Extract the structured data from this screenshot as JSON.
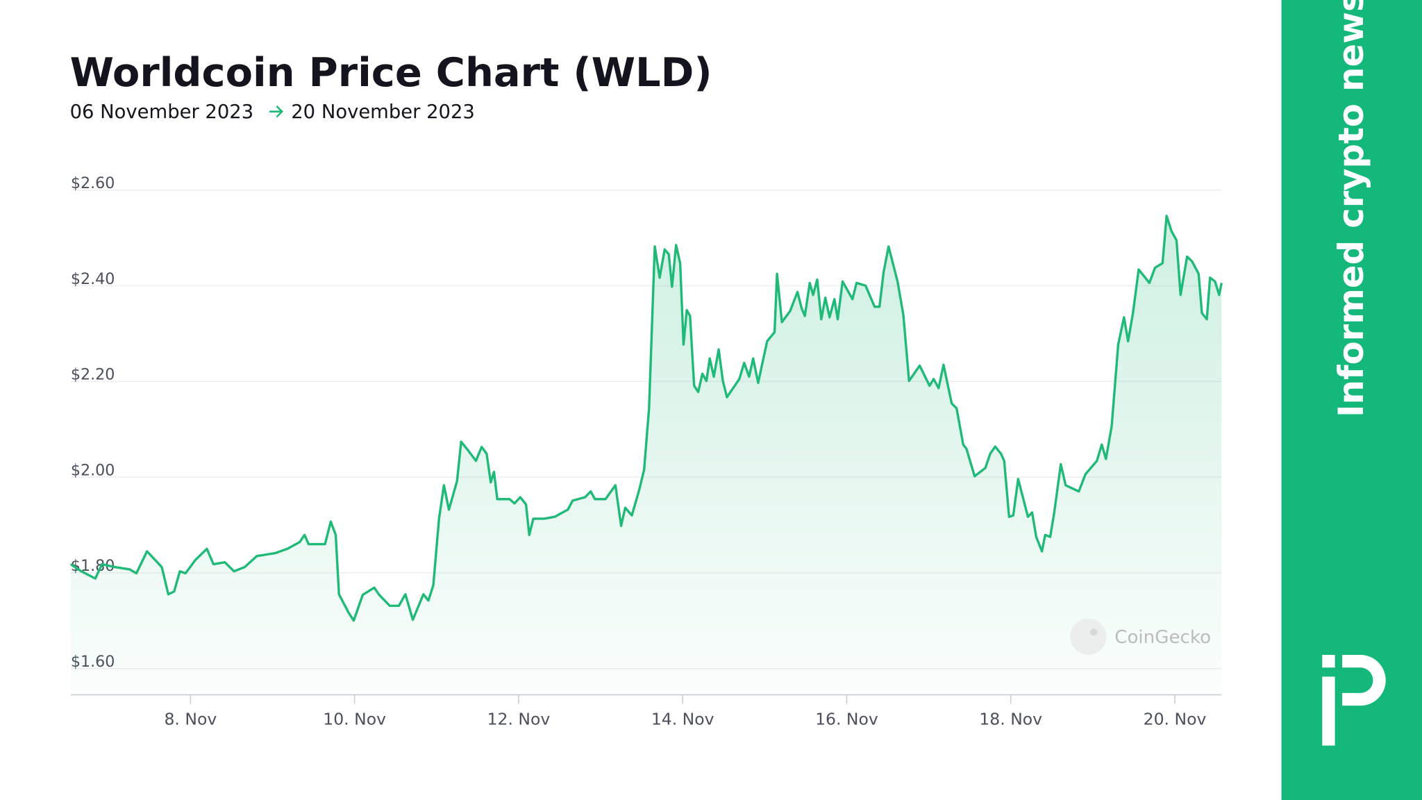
{
  "chart_data": {
    "type": "line",
    "title": "Worldcoin Price Chart (WLD)",
    "date_start": "06 November 2023",
    "date_end": "20 November 2023",
    "watermark": "CoinGecko",
    "color": "#1fb978",
    "area": true,
    "grid": true,
    "xlim": [
      6.54,
      20.57
    ],
    "ylim": [
      1.545,
      2.62
    ],
    "yticks": [
      {
        "value": 1.6,
        "label": "$1.60"
      },
      {
        "value": 1.8,
        "label": "$1.80"
      },
      {
        "value": 2.0,
        "label": "$2.00"
      },
      {
        "value": 2.2,
        "label": "$2.20"
      },
      {
        "value": 2.4,
        "label": "$2.40"
      },
      {
        "value": 2.6,
        "label": "$2.60"
      }
    ],
    "xticks": [
      {
        "value": 8,
        "label": "8. Nov"
      },
      {
        "value": 10,
        "label": "10. Nov"
      },
      {
        "value": 12,
        "label": "12. Nov"
      },
      {
        "value": 14,
        "label": "14. Nov"
      },
      {
        "value": 16,
        "label": "16. Nov"
      },
      {
        "value": 18,
        "label": "18. Nov"
      },
      {
        "value": 20,
        "label": "20. Nov"
      }
    ],
    "x": [
      6.54,
      6.67,
      6.84,
      6.92,
      7.08,
      7.26,
      7.34,
      7.47,
      7.65,
      7.73,
      7.8,
      7.87,
      7.94,
      8.06,
      8.2,
      8.28,
      8.42,
      8.53,
      8.66,
      8.81,
      9.03,
      9.18,
      9.33,
      9.39,
      9.44,
      9.64,
      9.71,
      9.77,
      9.81,
      9.93,
      9.99,
      10.1,
      10.24,
      10.3,
      10.43,
      10.54,
      10.62,
      10.71,
      10.84,
      10.9,
      10.96,
      11.03,
      11.09,
      11.15,
      11.25,
      11.3,
      11.37,
      11.48,
      11.55,
      11.61,
      11.66,
      11.7,
      11.74,
      11.89,
      11.95,
      12.02,
      12.09,
      12.13,
      12.18,
      12.31,
      12.44,
      12.6,
      12.66,
      12.81,
      12.88,
      12.93,
      13.06,
      13.18,
      13.25,
      13.3,
      13.38,
      13.47,
      13.53,
      13.59,
      13.66,
      13.72,
      13.78,
      13.83,
      13.87,
      13.92,
      13.97,
      14.01,
      14.05,
      14.09,
      14.14,
      14.19,
      14.24,
      14.29,
      14.33,
      14.38,
      14.44,
      14.49,
      14.54,
      14.69,
      14.75,
      14.81,
      14.86,
      14.92,
      15.03,
      15.12,
      15.15,
      15.21,
      15.31,
      15.4,
      15.45,
      15.49,
      15.55,
      15.59,
      15.64,
      15.69,
      15.74,
      15.79,
      15.85,
      15.89,
      15.95,
      16.07,
      16.12,
      16.23,
      16.34,
      16.4,
      16.45,
      16.51,
      16.62,
      16.69,
      16.76,
      16.89,
      17.01,
      17.06,
      17.12,
      17.18,
      17.28,
      17.34,
      17.42,
      17.46,
      17.56,
      17.69,
      17.75,
      17.81,
      17.88,
      17.92,
      17.98,
      18.03,
      18.09,
      18.21,
      18.26,
      18.31,
      18.38,
      18.42,
      18.48,
      18.53,
      18.61,
      18.67,
      18.83,
      18.91,
      19.05,
      19.11,
      19.16,
      19.23,
      19.31,
      19.38,
      19.43,
      19.49,
      19.56,
      19.69,
      19.76,
      19.85,
      19.9,
      19.96,
      20.02,
      20.07,
      20.15,
      20.21,
      20.29,
      20.33,
      20.39,
      20.43,
      20.49,
      20.54,
      20.57
    ],
    "values": [
      1.818,
      1.803,
      1.788,
      1.818,
      1.812,
      1.807,
      1.799,
      1.845,
      1.812,
      1.755,
      1.761,
      1.803,
      1.799,
      1.827,
      1.85,
      1.818,
      1.822,
      1.803,
      1.812,
      1.835,
      1.841,
      1.85,
      1.864,
      1.879,
      1.86,
      1.86,
      1.907,
      1.879,
      1.755,
      1.716,
      1.7,
      1.754,
      1.769,
      1.754,
      1.731,
      1.731,
      1.755,
      1.702,
      1.755,
      1.742,
      1.774,
      1.913,
      1.983,
      1.932,
      1.992,
      2.074,
      2.059,
      2.034,
      2.063,
      2.049,
      1.989,
      2.011,
      1.954,
      1.954,
      1.945,
      1.958,
      1.943,
      1.879,
      1.913,
      1.913,
      1.917,
      1.932,
      1.951,
      1.958,
      1.97,
      1.954,
      1.954,
      1.983,
      1.898,
      1.936,
      1.92,
      1.973,
      2.015,
      2.144,
      2.482,
      2.417,
      2.476,
      2.466,
      2.398,
      2.485,
      2.447,
      2.277,
      2.349,
      2.337,
      2.191,
      2.178,
      2.216,
      2.201,
      2.248,
      2.21,
      2.267,
      2.201,
      2.167,
      2.205,
      2.239,
      2.21,
      2.248,
      2.197,
      2.284,
      2.303,
      2.425,
      2.324,
      2.347,
      2.387,
      2.353,
      2.337,
      2.406,
      2.381,
      2.413,
      2.33,
      2.375,
      2.334,
      2.372,
      2.33,
      2.409,
      2.372,
      2.406,
      2.4,
      2.356,
      2.356,
      2.428,
      2.482,
      2.409,
      2.339,
      2.201,
      2.233,
      2.191,
      2.205,
      2.186,
      2.235,
      2.154,
      2.144,
      2.068,
      2.059,
      2.002,
      2.019,
      2.049,
      2.064,
      2.049,
      2.034,
      1.917,
      1.92,
      1.996,
      1.917,
      1.926,
      1.875,
      1.845,
      1.879,
      1.875,
      1.926,
      2.027,
      1.983,
      1.97,
      2.006,
      2.034,
      2.068,
      2.038,
      2.106,
      2.277,
      2.334,
      2.284,
      2.343,
      2.434,
      2.406,
      2.438,
      2.447,
      2.546,
      2.514,
      2.495,
      2.381,
      2.461,
      2.451,
      2.425,
      2.343,
      2.33,
      2.417,
      2.409,
      2.381,
      2.406
    ]
  },
  "sidebar": {
    "tagline": "Informed crypto news"
  }
}
